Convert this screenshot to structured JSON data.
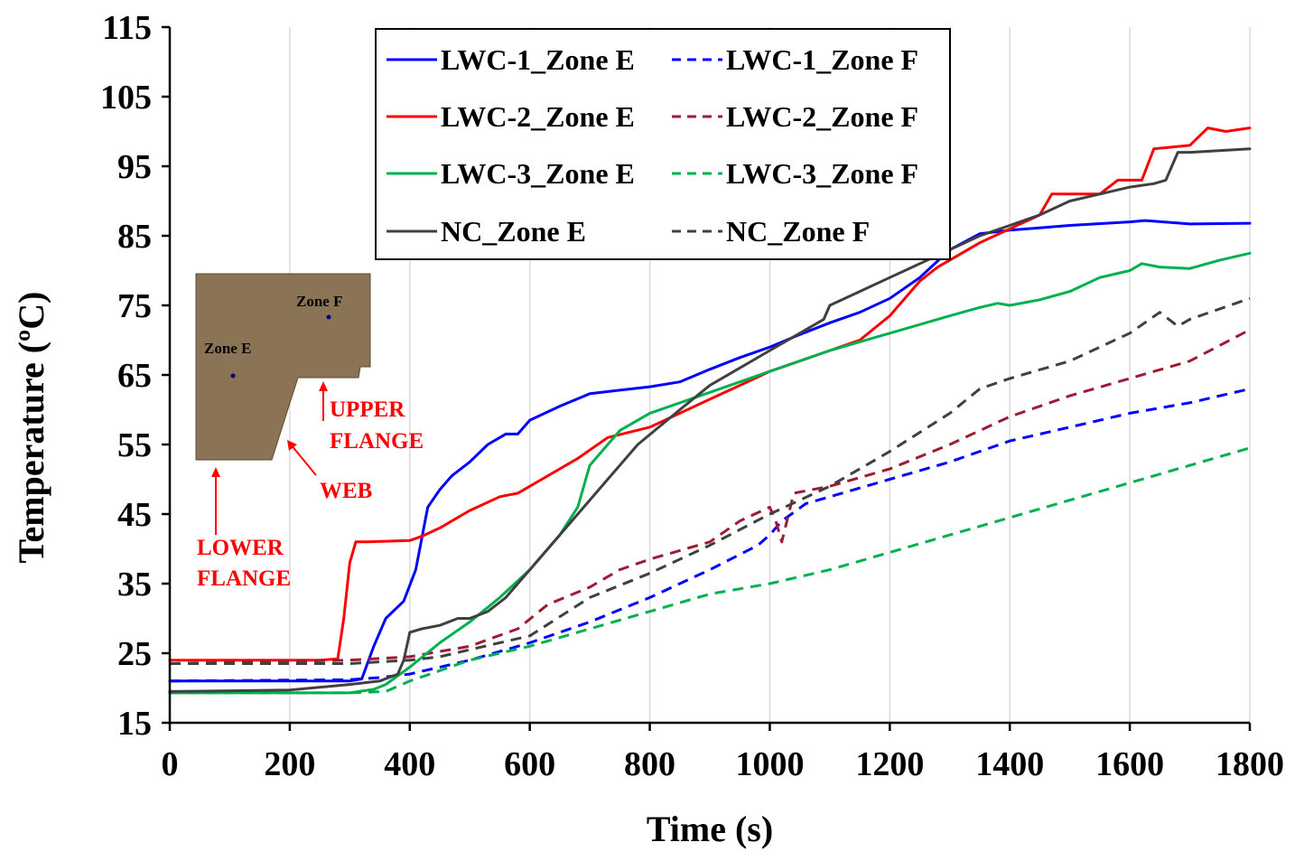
{
  "chart_data": {
    "type": "line",
    "title": "",
    "xlabel": "Time (s)",
    "ylabel": "Temperature (ºC)",
    "xlim": [
      0,
      1800
    ],
    "ylim": [
      15,
      115
    ],
    "xticks": [
      0,
      200,
      400,
      600,
      800,
      1000,
      1200,
      1400,
      1600,
      1800
    ],
    "yticks": [
      15,
      25,
      35,
      45,
      55,
      65,
      75,
      85,
      95,
      105,
      115
    ],
    "grid": "vertical",
    "legend_position": "top-center",
    "series": [
      {
        "name": "LWC-1_Zone E",
        "color": "#0000ff",
        "dash": "solid",
        "points": [
          [
            0,
            21
          ],
          [
            200,
            21
          ],
          [
            300,
            21
          ],
          [
            320,
            21.3
          ],
          [
            340,
            26
          ],
          [
            360,
            30
          ],
          [
            390,
            32.5
          ],
          [
            410,
            37
          ],
          [
            430,
            46
          ],
          [
            450,
            48.5
          ],
          [
            470,
            50.5
          ],
          [
            500,
            52.5
          ],
          [
            530,
            55
          ],
          [
            560,
            56.5
          ],
          [
            580,
            56.5
          ],
          [
            600,
            58.5
          ],
          [
            650,
            60.5
          ],
          [
            700,
            62.3
          ],
          [
            750,
            62.8
          ],
          [
            800,
            63.3
          ],
          [
            850,
            64
          ],
          [
            900,
            65.8
          ],
          [
            950,
            67.5
          ],
          [
            1000,
            69
          ],
          [
            1050,
            70.8
          ],
          [
            1100,
            72.5
          ],
          [
            1150,
            74
          ],
          [
            1200,
            76
          ],
          [
            1250,
            79
          ],
          [
            1300,
            83
          ],
          [
            1350,
            85.3
          ],
          [
            1400,
            85.8
          ],
          [
            1500,
            86.5
          ],
          [
            1600,
            87
          ],
          [
            1625,
            87.2
          ],
          [
            1700,
            86.7
          ],
          [
            1800,
            86.8
          ]
        ]
      },
      {
        "name": "LWC-1_Zone F",
        "color": "#0000ff",
        "dash": "dashed",
        "points": [
          [
            0,
            21
          ],
          [
            300,
            21.2
          ],
          [
            350,
            21.5
          ],
          [
            400,
            22
          ],
          [
            450,
            23
          ],
          [
            500,
            24
          ],
          [
            600,
            26.5
          ],
          [
            700,
            29.5
          ],
          [
            800,
            33
          ],
          [
            900,
            37
          ],
          [
            980,
            40.5
          ],
          [
            1000,
            42
          ],
          [
            1020,
            44
          ],
          [
            1060,
            46.5
          ],
          [
            1100,
            47.5
          ],
          [
            1200,
            50
          ],
          [
            1300,
            52.5
          ],
          [
            1400,
            55.5
          ],
          [
            1500,
            57.5
          ],
          [
            1600,
            59.5
          ],
          [
            1700,
            61
          ],
          [
            1800,
            63
          ]
        ]
      },
      {
        "name": "LWC-2_Zone E",
        "color": "#ff0000",
        "dash": "solid",
        "points": [
          [
            0,
            24
          ],
          [
            250,
            24
          ],
          [
            280,
            24.2
          ],
          [
            290,
            30
          ],
          [
            300,
            38
          ],
          [
            310,
            41
          ],
          [
            330,
            41
          ],
          [
            400,
            41.2
          ],
          [
            420,
            41.8
          ],
          [
            450,
            43
          ],
          [
            500,
            45.5
          ],
          [
            550,
            47.5
          ],
          [
            580,
            48
          ],
          [
            620,
            50
          ],
          [
            680,
            53
          ],
          [
            730,
            56
          ],
          [
            800,
            57.5
          ],
          [
            850,
            59.5
          ],
          [
            900,
            61.5
          ],
          [
            950,
            63.5
          ],
          [
            1000,
            65.5
          ],
          [
            1050,
            67
          ],
          [
            1100,
            68.5
          ],
          [
            1150,
            70
          ],
          [
            1200,
            73.5
          ],
          [
            1250,
            78.5
          ],
          [
            1280,
            80.5
          ],
          [
            1300,
            81.5
          ],
          [
            1350,
            84
          ],
          [
            1400,
            86
          ],
          [
            1450,
            88
          ],
          [
            1470,
            91
          ],
          [
            1500,
            91
          ],
          [
            1550,
            91
          ],
          [
            1580,
            93
          ],
          [
            1620,
            93
          ],
          [
            1640,
            97.5
          ],
          [
            1700,
            98
          ],
          [
            1730,
            100.5
          ],
          [
            1760,
            100
          ],
          [
            1800,
            100.5
          ]
        ]
      },
      {
        "name": "LWC-2_Zone F",
        "color": "#9e1b32",
        "dash": "dashed",
        "points": [
          [
            0,
            23.5
          ],
          [
            300,
            24
          ],
          [
            400,
            24.5
          ],
          [
            500,
            26
          ],
          [
            580,
            28.5
          ],
          [
            630,
            32
          ],
          [
            700,
            34.5
          ],
          [
            750,
            37
          ],
          [
            800,
            38.5
          ],
          [
            900,
            41
          ],
          [
            950,
            44
          ],
          [
            1000,
            46
          ],
          [
            1010,
            44
          ],
          [
            1020,
            41
          ],
          [
            1040,
            48
          ],
          [
            1100,
            49
          ],
          [
            1200,
            51.5
          ],
          [
            1300,
            55
          ],
          [
            1400,
            59
          ],
          [
            1500,
            62
          ],
          [
            1600,
            64.5
          ],
          [
            1700,
            67
          ],
          [
            1800,
            71.5
          ]
        ]
      },
      {
        "name": "LWC-3_Zone E",
        "color": "#00b050",
        "dash": "solid",
        "points": [
          [
            0,
            19.3
          ],
          [
            200,
            19.3
          ],
          [
            300,
            19.3
          ],
          [
            340,
            19.8
          ],
          [
            360,
            20.5
          ],
          [
            400,
            23
          ],
          [
            450,
            26.5
          ],
          [
            500,
            29.5
          ],
          [
            550,
            33
          ],
          [
            600,
            37
          ],
          [
            650,
            42
          ],
          [
            680,
            46
          ],
          [
            700,
            52
          ],
          [
            750,
            57
          ],
          [
            800,
            59.5
          ],
          [
            900,
            62.5
          ],
          [
            1000,
            65.5
          ],
          [
            1100,
            68.5
          ],
          [
            1200,
            71
          ],
          [
            1300,
            73.5
          ],
          [
            1350,
            74.7
          ],
          [
            1380,
            75.3
          ],
          [
            1400,
            75
          ],
          [
            1450,
            75.8
          ],
          [
            1500,
            77
          ],
          [
            1550,
            79
          ],
          [
            1600,
            80
          ],
          [
            1620,
            81
          ],
          [
            1650,
            80.5
          ],
          [
            1700,
            80.3
          ],
          [
            1750,
            81.5
          ],
          [
            1800,
            82.5
          ]
        ]
      },
      {
        "name": "LWC-3_Zone F",
        "color": "#00b050",
        "dash": "dashed",
        "points": [
          [
            0,
            19.3
          ],
          [
            300,
            19.3
          ],
          [
            360,
            19.5
          ],
          [
            400,
            21
          ],
          [
            450,
            22.5
          ],
          [
            500,
            24
          ],
          [
            600,
            26
          ],
          [
            700,
            28.5
          ],
          [
            800,
            31
          ],
          [
            900,
            33.5
          ],
          [
            1000,
            35
          ],
          [
            1100,
            37
          ],
          [
            1200,
            39.5
          ],
          [
            1300,
            42
          ],
          [
            1400,
            44.5
          ],
          [
            1500,
            47
          ],
          [
            1600,
            49.5
          ],
          [
            1700,
            52
          ],
          [
            1800,
            54.5
          ]
        ]
      },
      {
        "name": "NC_Zone E",
        "color": "#404040",
        "dash": "solid",
        "points": [
          [
            0,
            19.5
          ],
          [
            200,
            19.7
          ],
          [
            300,
            20.5
          ],
          [
            350,
            21
          ],
          [
            380,
            22
          ],
          [
            390,
            24
          ],
          [
            400,
            28
          ],
          [
            420,
            28.5
          ],
          [
            450,
            29
          ],
          [
            480,
            30
          ],
          [
            500,
            30
          ],
          [
            530,
            31
          ],
          [
            560,
            33
          ],
          [
            600,
            37
          ],
          [
            650,
            42
          ],
          [
            700,
            47
          ],
          [
            730,
            50
          ],
          [
            780,
            55
          ],
          [
            850,
            60
          ],
          [
            900,
            63.5
          ],
          [
            950,
            66
          ],
          [
            1000,
            68.5
          ],
          [
            1050,
            71
          ],
          [
            1090,
            73
          ],
          [
            1100,
            75
          ],
          [
            1150,
            77
          ],
          [
            1200,
            79
          ],
          [
            1250,
            81
          ],
          [
            1300,
            83
          ],
          [
            1350,
            85
          ],
          [
            1400,
            86.5
          ],
          [
            1450,
            88
          ],
          [
            1500,
            90
          ],
          [
            1550,
            91
          ],
          [
            1600,
            92
          ],
          [
            1640,
            92.5
          ],
          [
            1660,
            93
          ],
          [
            1680,
            97
          ],
          [
            1700,
            97
          ],
          [
            1800,
            97.5
          ]
        ]
      },
      {
        "name": "NC_Zone F",
        "color": "#404040",
        "dash": "dashed",
        "points": [
          [
            0,
            23.5
          ],
          [
            300,
            23.5
          ],
          [
            400,
            24
          ],
          [
            450,
            24.5
          ],
          [
            500,
            25.5
          ],
          [
            600,
            27.5
          ],
          [
            700,
            33
          ],
          [
            800,
            36.5
          ],
          [
            900,
            40.5
          ],
          [
            1000,
            45
          ],
          [
            1100,
            49
          ],
          [
            1200,
            54
          ],
          [
            1300,
            59.5
          ],
          [
            1350,
            63
          ],
          [
            1400,
            64.5
          ],
          [
            1500,
            67
          ],
          [
            1600,
            71
          ],
          [
            1650,
            74
          ],
          [
            1680,
            72
          ],
          [
            1700,
            73
          ],
          [
            1800,
            76
          ]
        ]
      }
    ],
    "legend": [
      [
        "LWC-1_Zone E",
        "LWC-1_Zone F"
      ],
      [
        "LWC-2_Zone E",
        "LWC-2_Zone F"
      ],
      [
        "LWC-3_Zone E",
        "LWC-3_Zone F"
      ],
      [
        "NC_Zone E",
        "NC_Zone F"
      ]
    ],
    "inset": {
      "fill_color": "#8b7355",
      "point_color": "#00008b",
      "zone_e_label": "Zone E",
      "zone_f_label": "Zone F",
      "annotation_color": "#ff0000",
      "upper_flange_line1": "UPPER",
      "upper_flange_line2": "FLANGE",
      "web_label": "WEB",
      "lower_flange_line1": "LOWER",
      "lower_flange_line2": "FLANGE"
    }
  }
}
